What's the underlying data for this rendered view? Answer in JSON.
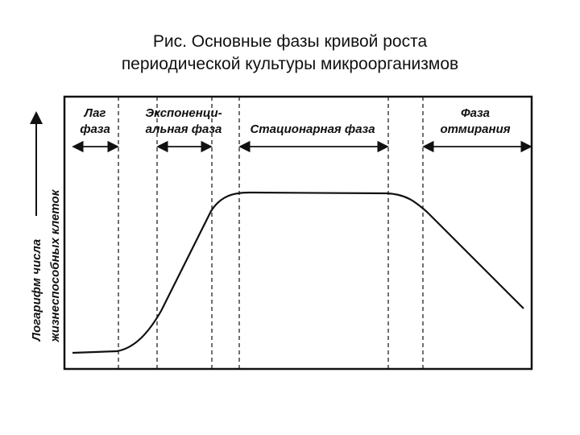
{
  "title": [
    "Рис. Основные фазы кривой роста",
    "периодической культуры микроорганизмов"
  ],
  "phases": [
    {
      "label": [
        "Лаг",
        "фаза"
      ]
    },
    {
      "label": [
        "Экспоненци-",
        "альная фаза"
      ]
    },
    {
      "label": [
        "Стационарная фаза"
      ]
    },
    {
      "label": [
        "Фаза",
        "отмирания"
      ]
    }
  ],
  "y_axis": {
    "label": [
      "Логарифм числа",
      "жизнеспособных клеток"
    ]
  }
}
